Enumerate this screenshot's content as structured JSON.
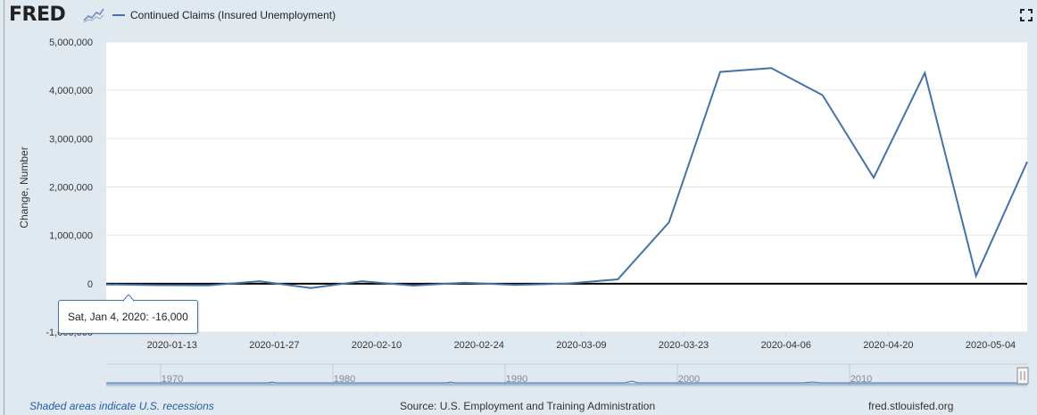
{
  "header": {
    "logo_text": "FRED",
    "series_name": "Continued Claims (Insured Unemployment)",
    "series_color": "#4572a7"
  },
  "chart_data": {
    "type": "line",
    "ylabel": "Change, Number",
    "ylim": [
      -1000000,
      5000000
    ],
    "y_ticks": [
      -1000000,
      0,
      1000000,
      2000000,
      3000000,
      4000000,
      5000000
    ],
    "y_tick_labels": [
      "-1,000,000",
      "0",
      "1,000,000",
      "2,000,000",
      "3,000,000",
      "4,000,000",
      "5,000,000"
    ],
    "x_tick_labels": [
      "2020-01-13",
      "2020-01-27",
      "2020-02-10",
      "2020-02-24",
      "2020-03-09",
      "2020-03-23",
      "2020-04-06",
      "2020-04-20",
      "2020-05-04"
    ],
    "x": [
      "2020-01-04",
      "2020-01-11",
      "2020-01-18",
      "2020-01-25",
      "2020-02-01",
      "2020-02-08",
      "2020-02-15",
      "2020-02-22",
      "2020-02-29",
      "2020-03-07",
      "2020-03-14",
      "2020-03-21",
      "2020-03-28",
      "2020-04-04",
      "2020-04-11",
      "2020-04-18",
      "2020-04-25",
      "2020-05-02",
      "2020-05-09"
    ],
    "series": [
      {
        "values": [
          -16000,
          -30000,
          -35000,
          50000,
          -90000,
          50000,
          -40000,
          20000,
          -25000,
          0,
          90000,
          1270000,
          4380000,
          4460000,
          3900000,
          2190000,
          4360000,
          160000,
          2520000
        ]
      }
    ],
    "zero_line": true,
    "grid": true,
    "navigator_labels": [
      "1970",
      "1980",
      "1990",
      "2000",
      "2010"
    ]
  },
  "tooltip": {
    "date": "Sat, Jan 4, 2020:",
    "value": "-16,000"
  },
  "footer": {
    "recessions_note": "Shaded areas indicate U.S. recessions",
    "source": "Source: U.S. Employment and Training Administration",
    "site": "fred.stlouisfed.org"
  }
}
